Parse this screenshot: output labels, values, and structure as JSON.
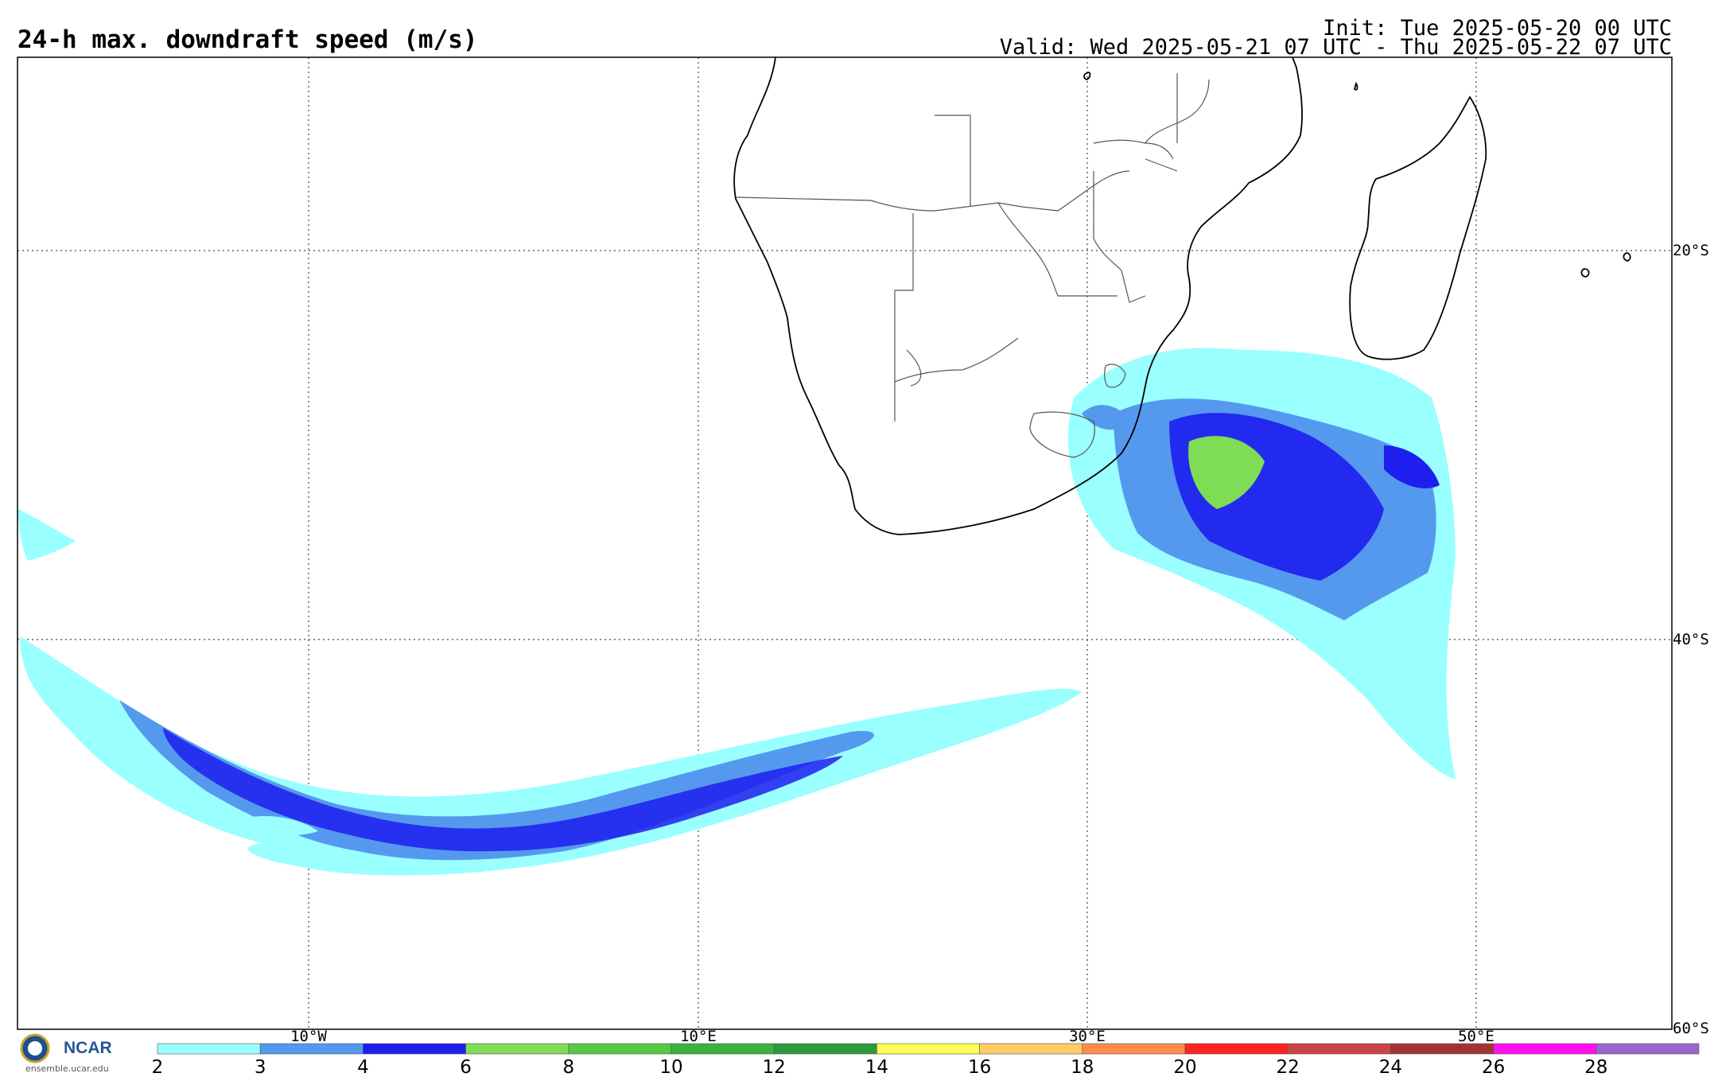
{
  "header": {
    "title": "24-h max. downdraft speed (m/s)",
    "init": "Init: Tue 2025-05-20 00 UTC",
    "valid": "Valid: Wed 2025-05-21 07 UTC - Thu 2025-05-22 07 UTC"
  },
  "map": {
    "lon_range": [
      -17.5,
      67.5
    ],
    "lat_range": [
      -60,
      -10
    ],
    "lon_labels": [
      "10°W",
      "10°E",
      "30°E",
      "50°E"
    ],
    "lat_labels": [
      "20°S",
      "40°S",
      "60°S"
    ]
  },
  "colorbar": {
    "ticks": [
      "2",
      "3",
      "4",
      "6",
      "8",
      "10",
      "12",
      "14",
      "16",
      "18",
      "20",
      "22",
      "24",
      "26",
      "28"
    ],
    "colors": [
      "#99ffff",
      "#5599ee",
      "#1e1eee",
      "#7edc55",
      "#55c844",
      "#3cb13c",
      "#2c9a3c",
      "#ffff55",
      "#ffcc66",
      "#ff8c4c",
      "#ff2222",
      "#cc4444",
      "#a33333",
      "#ff11ee",
      "#9966cc"
    ]
  },
  "logo": {
    "org": "NCAR",
    "url": "ensemble.ucar.edu"
  }
}
